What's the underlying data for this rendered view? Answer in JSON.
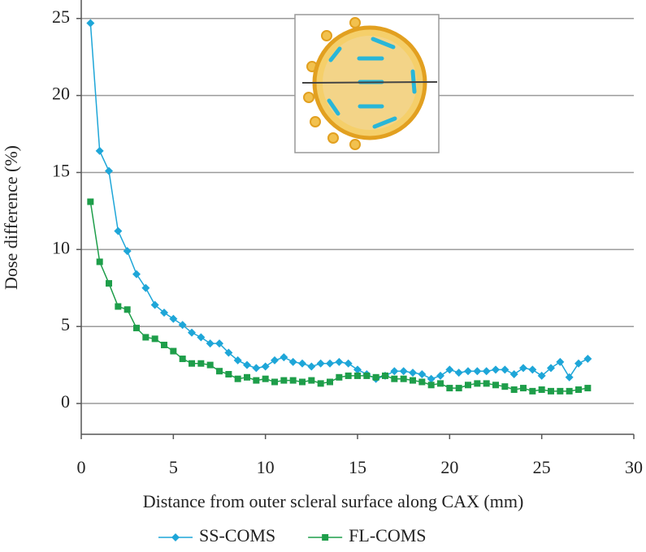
{
  "chart_data": {
    "type": "line",
    "xlabel": "Distance from outer scleral surface along CAX (mm)",
    "ylabel": "Dose difference (%)",
    "x": [
      0.5,
      1,
      1.5,
      2,
      2.5,
      3,
      3.5,
      4,
      4.5,
      5,
      5.5,
      6,
      6.5,
      7,
      7.5,
      8,
      8.5,
      9,
      9.5,
      10,
      10.5,
      11,
      11.5,
      12,
      12.5,
      13,
      13.5,
      14,
      14.5,
      15,
      15.5,
      16,
      16.5,
      17,
      17.5,
      18,
      18.5,
      19,
      19.5,
      20,
      20.5,
      21,
      21.5,
      22,
      22.5,
      23,
      23.5,
      24,
      24.5,
      25,
      25.5,
      26,
      26.5,
      27,
      27.5
    ],
    "series": [
      {
        "name": "SS-COMS",
        "color": "#1ea6d8",
        "marker": "diamond",
        "values": [
          24.7,
          16.4,
          15.1,
          11.2,
          9.9,
          8.4,
          7.5,
          6.4,
          5.9,
          5.5,
          5.1,
          4.6,
          4.3,
          3.9,
          3.9,
          3.3,
          2.8,
          2.5,
          2.3,
          2.4,
          2.8,
          3.0,
          2.7,
          2.6,
          2.4,
          2.6,
          2.6,
          2.7,
          2.6,
          2.2,
          1.9,
          1.6,
          1.8,
          2.1,
          2.1,
          2.0,
          1.9,
          1.6,
          1.8,
          2.2,
          2.0,
          2.1,
          2.1,
          2.1,
          2.2,
          2.2,
          1.9,
          2.3,
          2.2,
          1.8,
          2.3,
          2.7,
          1.7,
          2.6,
          2.9
        ]
      },
      {
        "name": "FL-COMS",
        "color": "#1e9e4a",
        "marker": "square",
        "values": [
          13.1,
          9.2,
          7.8,
          6.3,
          6.1,
          4.9,
          4.3,
          4.2,
          3.8,
          3.4,
          2.9,
          2.6,
          2.6,
          2.5,
          2.1,
          1.9,
          1.6,
          1.7,
          1.5,
          1.6,
          1.4,
          1.5,
          1.5,
          1.4,
          1.5,
          1.3,
          1.4,
          1.7,
          1.8,
          1.8,
          1.8,
          1.7,
          1.8,
          1.6,
          1.6,
          1.5,
          1.4,
          1.2,
          1.3,
          1.0,
          1.0,
          1.2,
          1.3,
          1.3,
          1.2,
          1.1,
          0.9,
          1.0,
          0.8,
          0.9,
          0.8,
          0.8,
          0.8,
          0.9,
          1.0
        ]
      }
    ],
    "xlim": [
      0,
      30
    ],
    "xticks": [
      0,
      5,
      10,
      15,
      20,
      25,
      30
    ],
    "ylim": [
      -2,
      26.2
    ],
    "yticks": [
      0,
      5,
      10,
      15,
      20,
      25
    ],
    "grid": true,
    "legend": "bottom"
  }
}
